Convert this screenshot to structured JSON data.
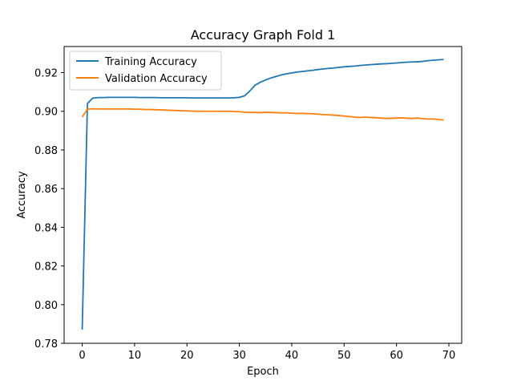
{
  "chart_data": {
    "type": "line",
    "title": "Accuracy Graph Fold 1",
    "xlabel": "Epoch",
    "ylabel": "Accuracy",
    "xlim": [
      -3.45,
      72.45
    ],
    "ylim": [
      0.78,
      0.9335
    ],
    "xticks": [
      0,
      10,
      20,
      30,
      40,
      50,
      60,
      70
    ],
    "yticks": [
      0.78,
      0.8,
      0.82,
      0.84,
      0.86,
      0.88,
      0.9,
      0.92
    ],
    "ytick_labels": [
      "0.78",
      "0.80",
      "0.82",
      "0.84",
      "0.86",
      "0.88",
      "0.90",
      "0.92"
    ],
    "grid": false,
    "legend_position": "top-left",
    "series": [
      {
        "name": "Training Accuracy",
        "color": "#1f77b4",
        "values": [
          0.7871,
          0.904,
          0.9068,
          0.9071,
          0.9071,
          0.9072,
          0.9072,
          0.9072,
          0.9072,
          0.9072,
          0.9072,
          0.9071,
          0.9071,
          0.9071,
          0.9071,
          0.907,
          0.907,
          0.907,
          0.907,
          0.907,
          0.907,
          0.9069,
          0.9069,
          0.9069,
          0.9069,
          0.9069,
          0.9069,
          0.9069,
          0.9069,
          0.907,
          0.9072,
          0.908,
          0.9105,
          0.9135,
          0.915,
          0.9162,
          0.9172,
          0.918,
          0.9188,
          0.9194,
          0.9198,
          0.9203,
          0.9206,
          0.9209,
          0.9212,
          0.9216,
          0.9219,
          0.9222,
          0.9224,
          0.9227,
          0.923,
          0.9232,
          0.9234,
          0.9237,
          0.9239,
          0.9241,
          0.9243,
          0.9245,
          0.9246,
          0.9248,
          0.925,
          0.9252,
          0.9254,
          0.9255,
          0.9256,
          0.9258,
          0.9262,
          0.9264,
          0.9266,
          0.9268
        ]
      },
      {
        "name": "Validation Accuracy",
        "color": "#ff7f0e",
        "values": [
          0.897,
          0.9011,
          0.9013,
          0.9012,
          0.9012,
          0.9012,
          0.9012,
          0.9012,
          0.9012,
          0.9012,
          0.9011,
          0.9011,
          0.9009,
          0.9009,
          0.9008,
          0.9007,
          0.9006,
          0.9005,
          0.9004,
          0.9003,
          0.9002,
          0.9001,
          0.9,
          0.9,
          0.9,
          0.9,
          0.9,
          0.9,
          0.9,
          0.8999,
          0.8998,
          0.8995,
          0.8994,
          0.8994,
          0.8993,
          0.8995,
          0.8994,
          0.8993,
          0.8992,
          0.8992,
          0.899,
          0.8989,
          0.8989,
          0.8988,
          0.8987,
          0.8985,
          0.8983,
          0.8982,
          0.898,
          0.8978,
          0.8975,
          0.8973,
          0.897,
          0.8968,
          0.897,
          0.8968,
          0.8967,
          0.8965,
          0.8963,
          0.8964,
          0.8965,
          0.8966,
          0.8964,
          0.8963,
          0.8965,
          0.8962,
          0.896,
          0.896,
          0.8958,
          0.8955
        ]
      }
    ]
  }
}
